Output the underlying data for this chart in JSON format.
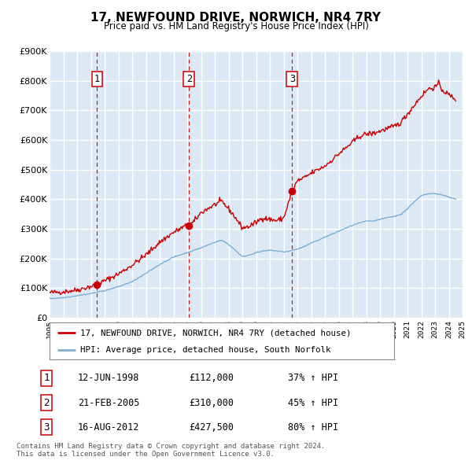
{
  "title": "17, NEWFOUND DRIVE, NORWICH, NR4 7RY",
  "subtitle": "Price paid vs. HM Land Registry's House Price Index (HPI)",
  "bg_color": "#dce9f5",
  "red_line_color": "#cc0000",
  "blue_line_color": "#7bafd4",
  "grid_color": "#ffffff",
  "sale_dates": [
    1998.45,
    2005.13,
    2012.62
  ],
  "sale_prices": [
    112000,
    310000,
    427500
  ],
  "sale_labels": [
    "1",
    "2",
    "3"
  ],
  "legend_red": "17, NEWFOUND DRIVE, NORWICH, NR4 7RY (detached house)",
  "legend_blue": "HPI: Average price, detached house, South Norfolk",
  "table_data": [
    [
      "1",
      "12-JUN-1998",
      "£112,000",
      "37% ↑ HPI"
    ],
    [
      "2",
      "21-FEB-2005",
      "£310,000",
      "45% ↑ HPI"
    ],
    [
      "3",
      "16-AUG-2012",
      "£427,500",
      "80% ↑ HPI"
    ]
  ],
  "footnote1": "Contains HM Land Registry data © Crown copyright and database right 2024.",
  "footnote2": "This data is licensed under the Open Government Licence v3.0.",
  "xmin": 1995,
  "xmax": 2025,
  "ymin": 0,
  "ymax": 900000,
  "red_anchors_x": [
    1995.0,
    1996.0,
    1997.0,
    1998.0,
    1998.45,
    1999.0,
    2000.0,
    2001.0,
    2002.0,
    2003.0,
    2004.0,
    2004.8,
    2005.13,
    2005.5,
    2006.0,
    2007.0,
    2007.5,
    2008.0,
    2008.5,
    2009.0,
    2009.5,
    2010.0,
    2010.5,
    2011.0,
    2011.5,
    2012.0,
    2012.62,
    2013.0,
    2013.5,
    2014.0,
    2014.5,
    2015.0,
    2015.5,
    2016.0,
    2016.5,
    2017.0,
    2017.5,
    2018.0,
    2018.5,
    2019.0,
    2019.5,
    2020.0,
    2020.5,
    2021.0,
    2021.5,
    2022.0,
    2022.5,
    2023.0,
    2023.3,
    2023.5,
    2024.0,
    2024.5
  ],
  "red_anchors_y": [
    85000,
    88000,
    94000,
    106000,
    112000,
    125000,
    148000,
    178000,
    212000,
    255000,
    288000,
    308000,
    310000,
    325000,
    355000,
    382000,
    393000,
    368000,
    338000,
    303000,
    308000,
    322000,
    338000,
    332000,
    328000,
    336000,
    427500,
    462000,
    472000,
    488000,
    500000,
    512000,
    532000,
    553000,
    572000,
    592000,
    612000,
    620000,
    622000,
    630000,
    638000,
    645000,
    658000,
    688000,
    718000,
    748000,
    772000,
    778000,
    790000,
    770000,
    752000,
    738000
  ],
  "blue_anchors_x": [
    1995.0,
    1996.0,
    1997.0,
    1998.0,
    1999.0,
    2000.0,
    2001.0,
    2002.0,
    2003.0,
    2004.0,
    2005.0,
    2006.0,
    2007.0,
    2007.5,
    2008.0,
    2008.5,
    2009.0,
    2009.5,
    2010.0,
    2010.5,
    2011.0,
    2011.5,
    2012.0,
    2012.5,
    2013.0,
    2013.5,
    2014.0,
    2014.5,
    2015.0,
    2015.5,
    2016.0,
    2016.5,
    2017.0,
    2017.5,
    2018.0,
    2018.5,
    2019.0,
    2019.5,
    2020.0,
    2020.5,
    2021.0,
    2021.5,
    2022.0,
    2022.5,
    2023.0,
    2023.5,
    2024.0,
    2024.5
  ],
  "blue_anchors_y": [
    65000,
    68000,
    75000,
    82000,
    92000,
    105000,
    122000,
    150000,
    180000,
    205000,
    220000,
    236000,
    255000,
    262000,
    248000,
    228000,
    206000,
    212000,
    220000,
    225000,
    228000,
    226000,
    222000,
    226000,
    232000,
    240000,
    252000,
    262000,
    272000,
    282000,
    292000,
    302000,
    312000,
    320000,
    326000,
    326000,
    332000,
    338000,
    342000,
    348000,
    368000,
    392000,
    412000,
    418000,
    420000,
    415000,
    408000,
    400000
  ]
}
